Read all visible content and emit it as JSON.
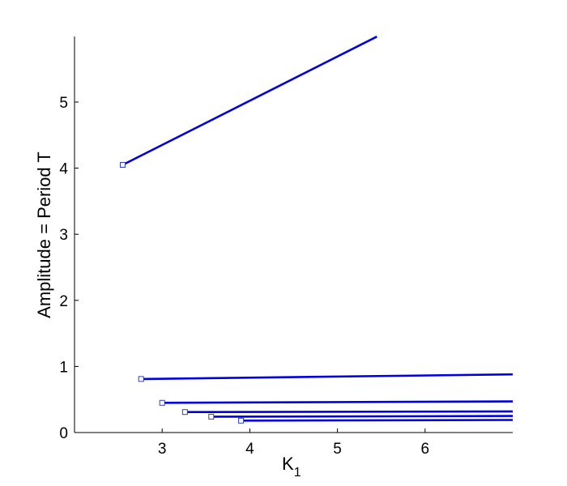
{
  "chart_data": {
    "type": "line",
    "xlabel": "K",
    "xlabel_subscript": "1",
    "ylabel": "Amplitude = Period T",
    "xlim": [
      2,
      7
    ],
    "ylim": [
      0,
      6
    ],
    "xticks": [
      3,
      4,
      5,
      6
    ],
    "yticks": [
      0,
      1,
      2,
      3,
      4,
      5
    ],
    "grid": false,
    "line_color": "#0000e0",
    "marker": "square",
    "marker_color": "#3040c0",
    "series": [
      {
        "x": [
          2.55,
          5.45
        ],
        "y": [
          4.05,
          5.99
        ]
      },
      {
        "x": [
          2.76,
          7.0
        ],
        "y": [
          0.81,
          0.88
        ]
      },
      {
        "x": [
          3.0,
          7.0
        ],
        "y": [
          0.45,
          0.47
        ]
      },
      {
        "x": [
          3.26,
          7.0
        ],
        "y": [
          0.31,
          0.32
        ]
      },
      {
        "x": [
          3.56,
          7.0
        ],
        "y": [
          0.24,
          0.25
        ]
      },
      {
        "x": [
          3.9,
          7.0
        ],
        "y": [
          0.18,
          0.19
        ]
      }
    ]
  }
}
